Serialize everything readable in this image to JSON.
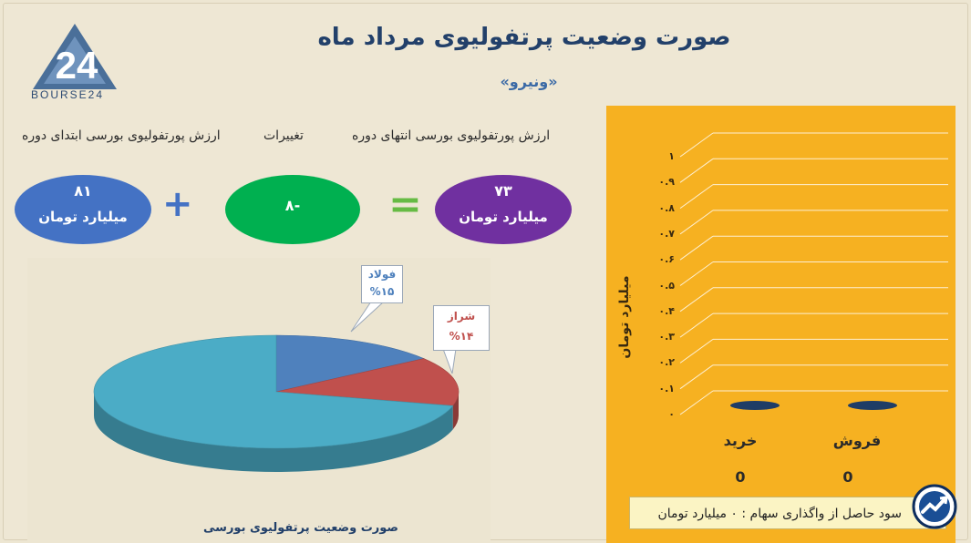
{
  "brand": {
    "logo_text": "BOURSE24",
    "logo_glyph": "24"
  },
  "header": {
    "title": "صورت وضعیت پرتفولیوی مرداد ماه",
    "fund": "«ونیرو»"
  },
  "summary": {
    "start_label": "ارزش پورتفولیوی بورسی ابتدای دوره",
    "change_label": "تغییرات",
    "end_label": "ارزش پورتفولیوی بورسی انتهای دوره",
    "start_value": "۸۱",
    "start_unit": "میلیارد تومان",
    "change_value": "-۸",
    "end_value": "۷۳",
    "end_unit": "میلیارد تومان",
    "plus_sign": "+",
    "equals_sign": "="
  },
  "colors": {
    "start": "#4472c4",
    "change": "#00b050",
    "end": "#7030a0",
    "accent": "#f6b121",
    "pie_main": "#4bacc6",
    "pie_foolad": "#4f81bd",
    "pie_shiraz": "#c0504d"
  },
  "chart_data": [
    {
      "type": "pie",
      "title": "صورت وضعیت پرتفولیوی بورسی",
      "slices": [
        {
          "label": "فولاد",
          "value": 15,
          "display": "%۱۵",
          "color": "#4f81bd"
        },
        {
          "label": "شراز",
          "value": 14,
          "display": "%۱۴",
          "color": "#c0504d"
        },
        {
          "label": "",
          "value": 71,
          "color": "#4bacc6"
        }
      ]
    },
    {
      "type": "bar",
      "categories": [
        "خرید",
        "فروش"
      ],
      "values": [
        0,
        0
      ],
      "value_labels": [
        "0",
        "0"
      ],
      "ylabel": "میلیارد تومان",
      "ylim": [
        0,
        1
      ],
      "yticks": [
        "۰",
        "۰.۱",
        "۰.۲",
        "۰.۳",
        "۰.۴",
        "۰.۵",
        "۰.۶",
        "۰.۷",
        "۰.۸",
        "۰.۹",
        "۱"
      ],
      "grid": true
    }
  ],
  "footer": {
    "profit_text": "سود حاصل از واگذاری سهام : ۰ میلیارد تومان"
  },
  "icons": {
    "badge": "trend-up-icon"
  }
}
